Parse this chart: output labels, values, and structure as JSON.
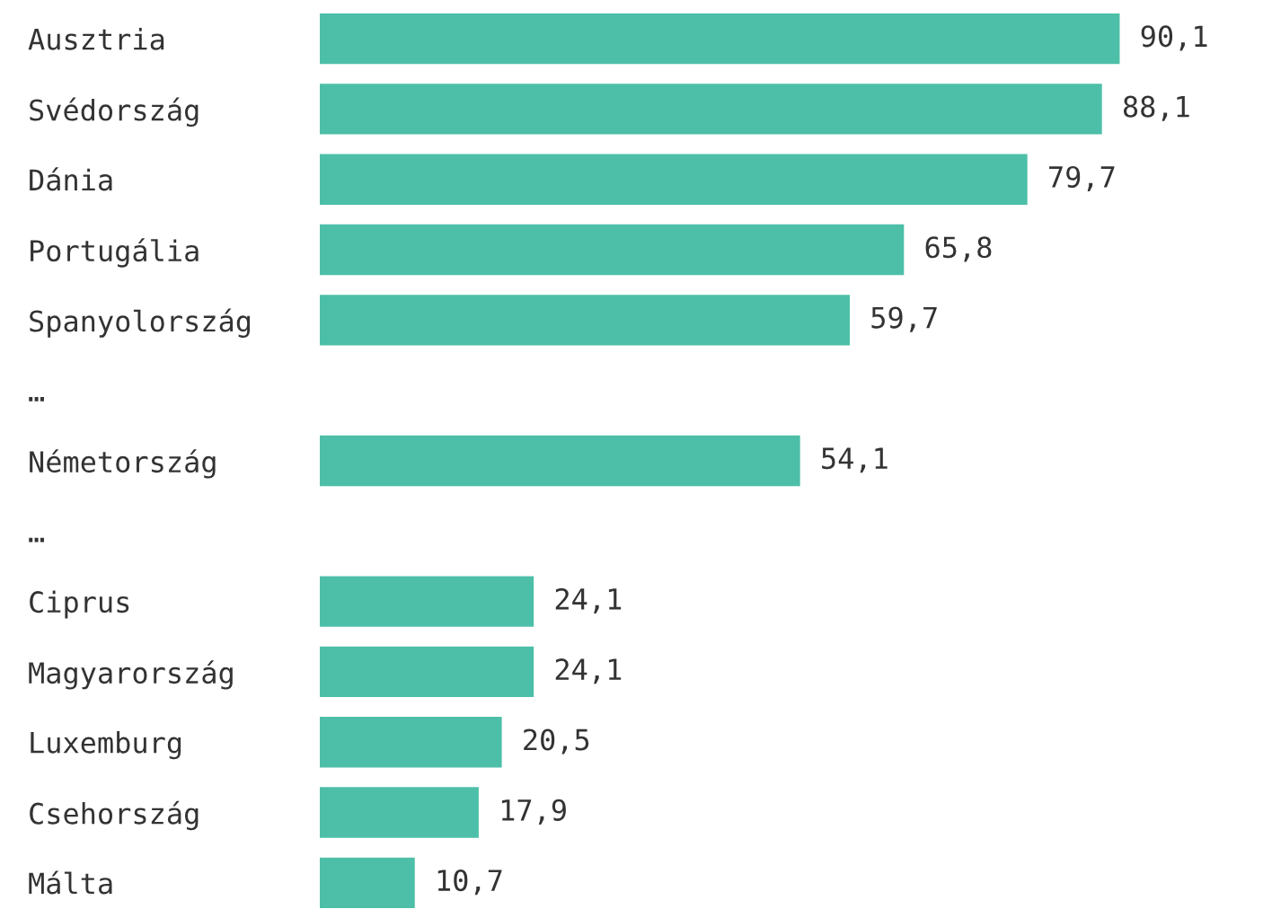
{
  "chart_data": {
    "type": "bar",
    "orientation": "horizontal",
    "categories": [
      "Ausztria",
      "Svédország",
      "Dánia",
      "Portugália",
      "Spanyolország",
      "…",
      "Németország",
      "…",
      "Ciprus",
      "Magyarország",
      "Luxemburg",
      "Csehország",
      "Málta"
    ],
    "values": [
      90.1,
      88.1,
      79.7,
      65.8,
      59.7,
      null,
      54.1,
      null,
      24.1,
      24.1,
      20.5,
      17.9,
      10.7
    ],
    "value_labels": [
      "90,1",
      "88,1",
      "79,7",
      "65,8",
      "59,7",
      null,
      "54,1",
      null,
      "24,1",
      "24,1",
      "20,5",
      "17,9",
      "10,7"
    ],
    "color": "#4dbfa8"
  }
}
